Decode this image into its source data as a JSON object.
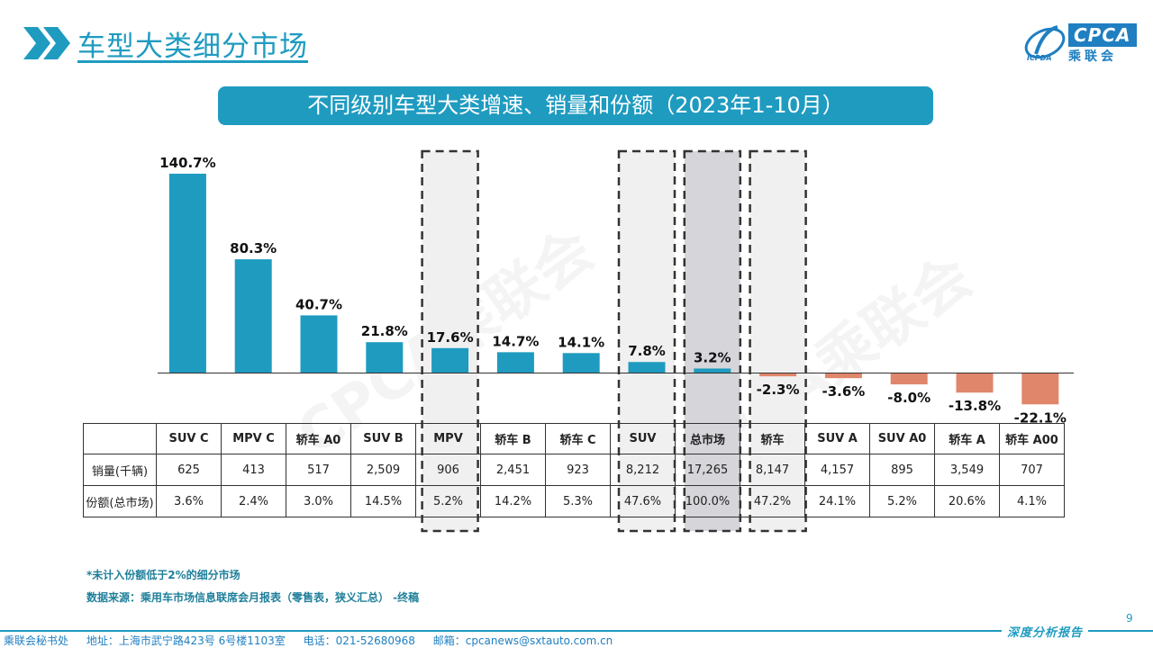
{
  "header": {
    "title": "车型大类细分市场",
    "logo_text": "CPCA",
    "logo_cn": "乘联会",
    "logo_small": "ICPDA"
  },
  "banner": "不同级别车型大类增速、销量和份额（2023年1-10月）",
  "chart_data": {
    "type": "bar",
    "categories": [
      "SUV C",
      "MPV C",
      "轿车 A0",
      "SUV B",
      "MPV",
      "轿车 B",
      "轿车 C",
      "SUV",
      "总市场",
      "轿车",
      "SUV A",
      "SUV A0",
      "轿车 A",
      "轿车 A00"
    ],
    "values": [
      140.7,
      80.3,
      40.7,
      21.8,
      17.6,
      14.7,
      14.1,
      7.8,
      3.2,
      -2.3,
      -3.6,
      -8.0,
      -13.8,
      -22.1
    ],
    "value_labels": [
      "140.7%",
      "80.3%",
      "40.7%",
      "21.8%",
      "17.6%",
      "14.7%",
      "14.1%",
      "7.8%",
      "3.2%",
      "-2.3%",
      "-3.6%",
      "-8.0%",
      "-13.8%",
      "-22.1%"
    ],
    "highlighted": [
      "MPV",
      "SUV",
      "总市场",
      "轿车"
    ],
    "colors": {
      "positive": "#1f9bc0",
      "negative": "#e0866a",
      "highlight_bg": "#f0f0f0",
      "market_bg": "#d5d5da"
    }
  },
  "table": {
    "row_labels": [
      "销量(千辆)",
      "份额(总市场)"
    ],
    "sales": [
      "625",
      "413",
      "517",
      "2,509",
      "906",
      "2,451",
      "923",
      "8,212",
      "17,265",
      "8,147",
      "4,157",
      "895",
      "3,549",
      "707"
    ],
    "shares": [
      "3.6%",
      "2.4%",
      "3.0%",
      "14.5%",
      "5.2%",
      "14.2%",
      "5.3%",
      "47.6%",
      "100.0%",
      "47.2%",
      "24.1%",
      "5.2%",
      "20.6%",
      "4.1%"
    ]
  },
  "notes": {
    "note1": "*未计入份额低于2%的细分市场",
    "note2": "数据来源：乘用车市场信息联席会月报表（零售表，狭义汇总）  -终稿"
  },
  "page_number": "9",
  "footer": {
    "tag": "深度分析报告",
    "org": "乘联会秘书处",
    "address": "地址：上海市武宁路423号 6号楼1103室",
    "phone": "电话：021-52680968",
    "email": "邮箱：cpcanews@sxtauto.com.cn"
  },
  "watermark": "CPCA乘联会"
}
